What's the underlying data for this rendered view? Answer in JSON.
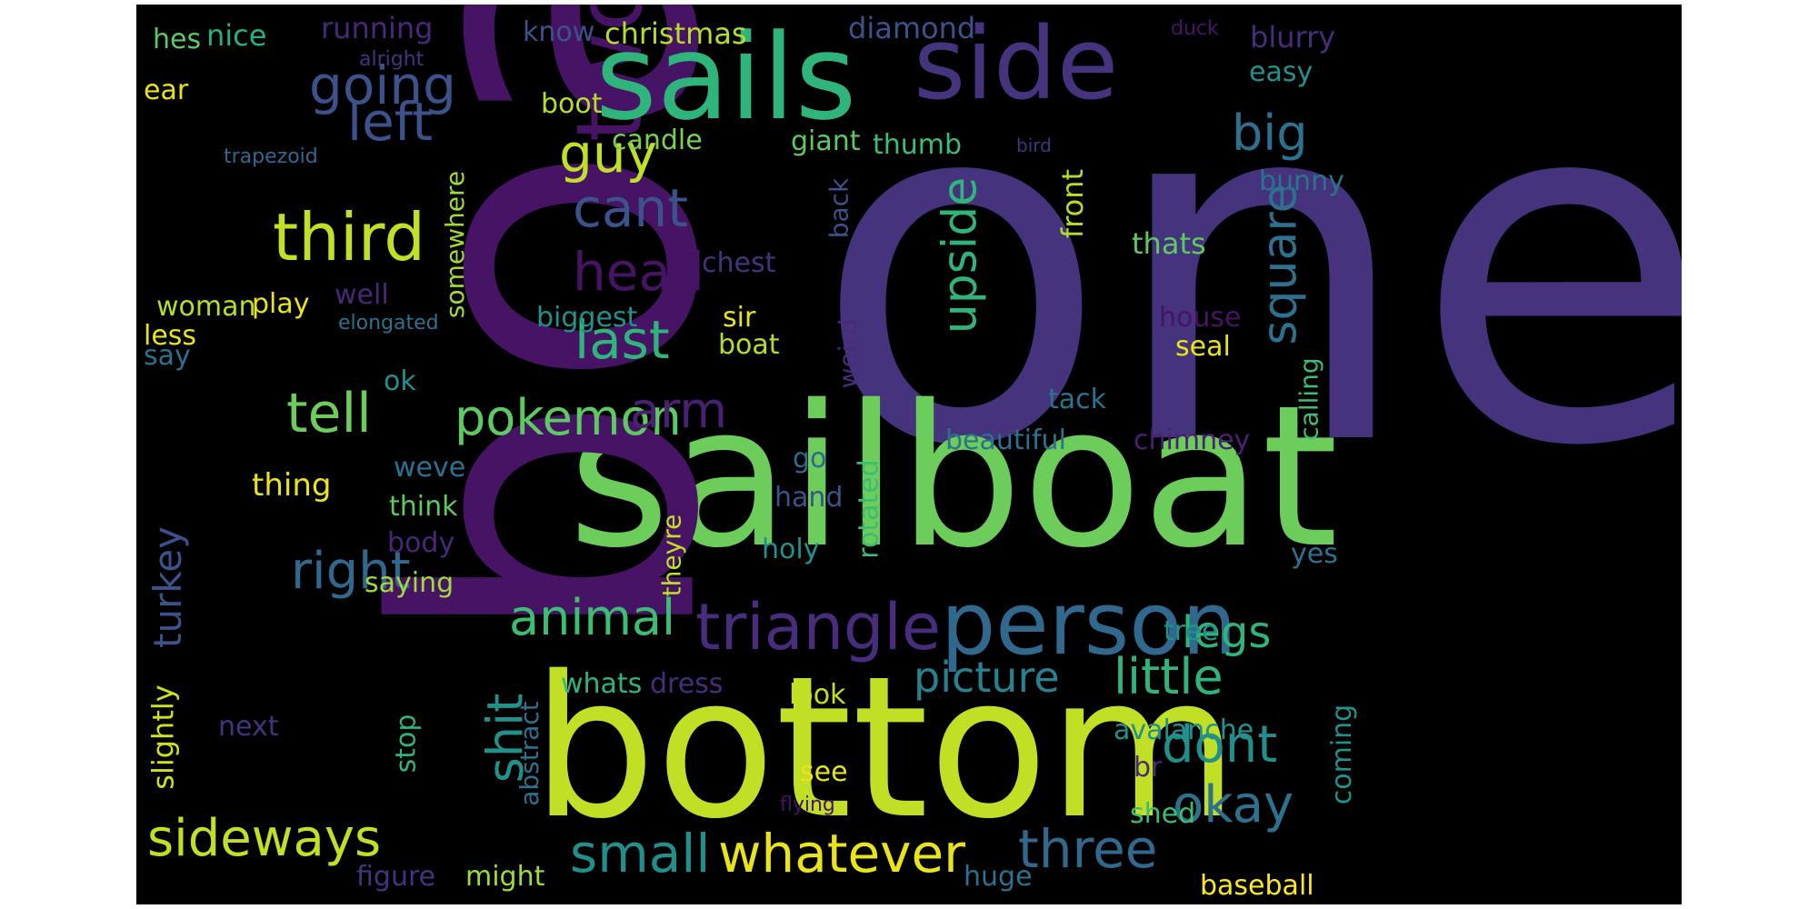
{
  "words": [
    {
      "text": "one",
      "color": "#46337e"
    },
    {
      "text": "sailboat",
      "color": "#6ccd5a"
    },
    {
      "text": "bottom",
      "color": "#c1df24"
    },
    {
      "text": "boat",
      "color": "#471365"
    },
    {
      "text": "two",
      "color": "#471365"
    },
    {
      "text": "sails",
      "color": "#2fb47c"
    },
    {
      "text": "side",
      "color": "#46337e"
    },
    {
      "text": "person",
      "color": "#31688e"
    },
    {
      "text": "triangle",
      "color": "#472d7b"
    },
    {
      "text": "third",
      "color": "#c1df24"
    },
    {
      "text": "going",
      "color": "#3b528b"
    },
    {
      "text": "left",
      "color": "#3b528b"
    },
    {
      "text": "guy",
      "color": "#c1df24"
    },
    {
      "text": "cant",
      "color": "#3b528b"
    },
    {
      "text": "head",
      "color": "#471365"
    },
    {
      "text": "last",
      "color": "#2fb47c"
    },
    {
      "text": "tell",
      "color": "#6ccd5a"
    },
    {
      "text": "pokemon",
      "color": "#5ec962"
    },
    {
      "text": "arm",
      "color": "#482173"
    },
    {
      "text": "right",
      "color": "#31688e"
    },
    {
      "text": "animal",
      "color": "#3dbc74"
    },
    {
      "text": "upside",
      "color": "#2fb47c"
    },
    {
      "text": "square",
      "color": "#2c728e"
    },
    {
      "text": "big",
      "color": "#2c728e"
    },
    {
      "text": "little",
      "color": "#2fb47c"
    },
    {
      "text": "picture",
      "color": "#26828e"
    },
    {
      "text": "dont",
      "color": "#21908d"
    },
    {
      "text": "okay",
      "color": "#2c728e"
    },
    {
      "text": "three",
      "color": "#31688e"
    },
    {
      "text": "whatever",
      "color": "#e8e419"
    },
    {
      "text": "small",
      "color": "#21908d"
    },
    {
      "text": "sideways",
      "color": "#c1df24"
    },
    {
      "text": "shit",
      "color": "#21918c"
    },
    {
      "text": "legs",
      "color": "#2fb47c"
    },
    {
      "text": "turkey",
      "color": "#3b528b"
    },
    {
      "text": "thing",
      "color": "#e8e419"
    },
    {
      "text": "hes",
      "color": "#5ec962"
    },
    {
      "text": "nice",
      "color": "#28ae80"
    },
    {
      "text": "running",
      "color": "#482878"
    },
    {
      "text": "know",
      "color": "#3b528b"
    },
    {
      "text": "christmas",
      "color": "#b5de2b"
    },
    {
      "text": "diamond",
      "color": "#3b528b"
    },
    {
      "text": "duck",
      "color": "#471365"
    },
    {
      "text": "blurry",
      "color": "#472d7b"
    },
    {
      "text": "easy",
      "color": "#21918c"
    },
    {
      "text": "ear",
      "color": "#e8e419"
    },
    {
      "text": "alright",
      "color": "#46337e"
    },
    {
      "text": "boot",
      "color": "#b5de2b"
    },
    {
      "text": "candle",
      "color": "#7ad151"
    },
    {
      "text": "giant",
      "color": "#5ec962"
    },
    {
      "text": "thumb",
      "color": "#3dbc74"
    },
    {
      "text": "bird",
      "color": "#46337e"
    },
    {
      "text": "trapezoid",
      "color": "#31688e"
    },
    {
      "text": "bunny",
      "color": "#2c728e"
    },
    {
      "text": "front",
      "color": "#b5de2b"
    },
    {
      "text": "thats",
      "color": "#5ec962"
    },
    {
      "text": "somewhere",
      "color": "#a0da39"
    },
    {
      "text": "back",
      "color": "#3b528b"
    },
    {
      "text": "chest",
      "color": "#46337e"
    },
    {
      "text": "well",
      "color": "#482878"
    },
    {
      "text": "biggest",
      "color": "#21918c"
    },
    {
      "text": "woman",
      "color": "#b5de2b"
    },
    {
      "text": "play",
      "color": "#e8e419"
    },
    {
      "text": "elongated",
      "color": "#2c728e"
    },
    {
      "text": "less",
      "color": "#e8e419"
    },
    {
      "text": "say",
      "color": "#2c728e"
    },
    {
      "text": "sir",
      "color": "#e8e419"
    },
    {
      "text": "boat",
      "color": "#b5de2b"
    },
    {
      "text": "weird",
      "color": "#472d7b"
    },
    {
      "text": "house",
      "color": "#471365"
    },
    {
      "text": "seal",
      "color": "#e8e419"
    },
    {
      "text": "calling",
      "color": "#3dbc74"
    },
    {
      "text": "ok",
      "color": "#21918c"
    },
    {
      "text": "tack",
      "color": "#2c728e"
    },
    {
      "text": "beautiful",
      "color": "#2c728e"
    },
    {
      "text": "chimney",
      "color": "#482173"
    },
    {
      "text": "weve",
      "color": "#2c728e"
    },
    {
      "text": "go",
      "color": "#31688e"
    },
    {
      "text": "rotated",
      "color": "#3dbc74"
    },
    {
      "text": "think",
      "color": "#5ec962"
    },
    {
      "text": "hand",
      "color": "#3b528b"
    },
    {
      "text": "body",
      "color": "#482878"
    },
    {
      "text": "holy",
      "color": "#21918c"
    },
    {
      "text": "yes",
      "color": "#2c728e"
    },
    {
      "text": "saying",
      "color": "#a0da39"
    },
    {
      "text": "theyre",
      "color": "#c1df24"
    },
    {
      "text": "tree",
      "color": "#21918c"
    },
    {
      "text": "whats",
      "color": "#2fb47c"
    },
    {
      "text": "dress",
      "color": "#472d7b"
    },
    {
      "text": "look",
      "color": "#c1df24"
    },
    {
      "text": "slightly",
      "color": "#d0e11c"
    },
    {
      "text": "abstract",
      "color": "#2c728e"
    },
    {
      "text": "coming",
      "color": "#21918c"
    },
    {
      "text": "avalanche",
      "color": "#21918c"
    },
    {
      "text": "next",
      "color": "#46337e"
    },
    {
      "text": "stop",
      "color": "#2fb47c"
    },
    {
      "text": "see",
      "color": "#e8e419"
    },
    {
      "text": "br",
      "color": "#482878"
    },
    {
      "text": "flying",
      "color": "#471365"
    },
    {
      "text": "shed",
      "color": "#3dbc74"
    },
    {
      "text": "figure",
      "color": "#46337e"
    },
    {
      "text": "might",
      "color": "#a0da39"
    },
    {
      "text": "huge",
      "color": "#2c728e"
    },
    {
      "text": "baseball",
      "color": "#fde725"
    }
  ]
}
